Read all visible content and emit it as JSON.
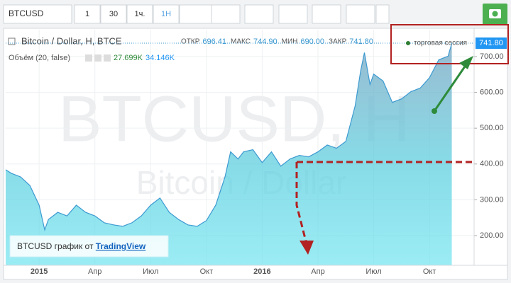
{
  "toolbar": {
    "symbol": "BTCUSD",
    "intervals": [
      "1",
      "30",
      "1ч.",
      "1H"
    ]
  },
  "chart_data": {
    "type": "area",
    "title": "Bitcoin / Dollar, H, BTCE",
    "watermark": "BTCUSD, H",
    "watermark_sub": "Bitcoin / Dollar",
    "ohlc": [
      {
        "label": "ОТКР",
        "value": "696.41"
      },
      {
        "label": "МАКС",
        "value": "744.90"
      },
      {
        "label": "МИН",
        "value": "690.00"
      },
      {
        "label": "ЗАКР",
        "value": "741.80"
      }
    ],
    "session": "торговая сессия",
    "volume": {
      "label": "Объём (20, false)",
      "values": [
        "27.699K",
        "34.146K"
      ]
    },
    "credit": {
      "text": "BTCUSD график от ",
      "link": "TradingView"
    },
    "color": "#3d9ad1",
    "x": [
      -1.8,
      -1.5,
      -1,
      -0.5,
      0,
      0.3,
      0.5,
      1,
      1.5,
      2,
      2.5,
      3,
      3.5,
      4,
      4.5,
      5,
      5.5,
      6,
      6.5,
      7,
      7.5,
      8,
      8.5,
      9,
      9.5,
      10,
      10.3,
      10.7,
      11,
      11.5,
      12,
      12.5,
      13,
      13.5,
      14,
      14.5,
      15,
      15.5,
      16,
      16.5,
      17,
      17.3,
      17.5,
      17.8,
      18,
      18.5,
      19,
      19.5,
      20,
      20.5,
      21,
      21.5,
      22,
      22.2
    ],
    "values": [
      384,
      374,
      364,
      340,
      285,
      216,
      245,
      265,
      255,
      285,
      265,
      255,
      236,
      230,
      226,
      236,
      255,
      285,
      305,
      265,
      245,
      230,
      226,
      242,
      285,
      364,
      434,
      414,
      434,
      440,
      404,
      434,
      394,
      414,
      424,
      420,
      434,
      453,
      444,
      463,
      562,
      661,
      711,
      622,
      651,
      632,
      572,
      582,
      602,
      612,
      641,
      691,
      701,
      737
    ],
    "xlim": [
      -1.8,
      23.4
    ],
    "xticks": [
      {
        "value": 0,
        "label": "2015"
      },
      {
        "value": 3,
        "label": "Апр"
      },
      {
        "value": 6,
        "label": "Июл"
      },
      {
        "value": 9,
        "label": "Окт"
      },
      {
        "value": 12,
        "label": "2016"
      },
      {
        "value": 15,
        "label": "Апр"
      },
      {
        "value": 18,
        "label": "Июл"
      },
      {
        "value": 21,
        "label": "Окт"
      }
    ],
    "ylim": [
      117,
      775
    ],
    "yticks": [
      {
        "value": 200,
        "label": "200.00"
      },
      {
        "value": 300,
        "label": "300.00"
      },
      {
        "value": 400,
        "label": "400.00"
      },
      {
        "value": 500,
        "label": "500.00"
      },
      {
        "value": 600,
        "label": "600.00"
      },
      {
        "value": 700,
        "label": "700.00"
      }
    ],
    "grid": true
  }
}
